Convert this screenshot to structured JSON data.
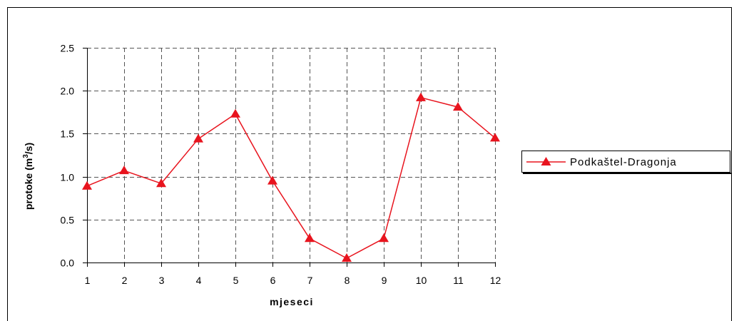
{
  "chart_data": {
    "type": "line",
    "x": [
      1,
      2,
      3,
      4,
      5,
      6,
      7,
      8,
      9,
      10,
      11,
      12
    ],
    "series": [
      {
        "name": "Podkaštel-Dragonja",
        "values": [
          0.89,
          1.07,
          0.92,
          1.44,
          1.73,
          0.95,
          0.28,
          0.05,
          0.28,
          1.92,
          1.81,
          1.45
        ],
        "color": "#e8141e",
        "marker": "triangle"
      }
    ],
    "xlabel": "mjeseci",
    "ylabel_main": "protoke (m",
    "ylabel_sup": "3",
    "ylabel_tail": "/s)",
    "ylim": [
      0,
      2.5
    ],
    "yticks": [
      "0.0",
      "0.5",
      "1.0",
      "1.5",
      "2.0",
      "2.5"
    ],
    "xticks": [
      "1",
      "2",
      "3",
      "4",
      "5",
      "6",
      "7",
      "8",
      "9",
      "10",
      "11",
      "12"
    ],
    "grid": true,
    "grid_style": "dashed",
    "legend_position": "right"
  }
}
